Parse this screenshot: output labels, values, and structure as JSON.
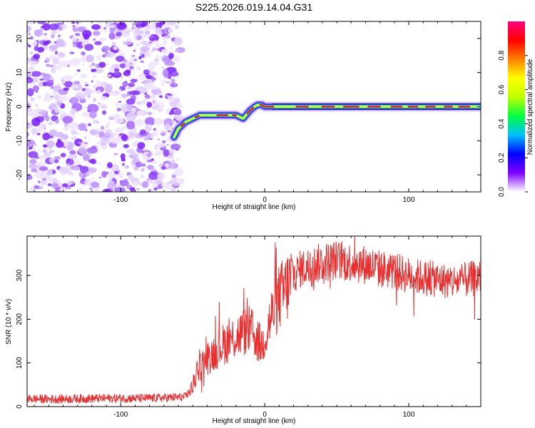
{
  "chart_data": [
    {
      "type": "heatmap",
      "title": "S225.2026.019.14.04.G31",
      "xlabel": "Height of straight line (km)",
      "ylabel": "Frequency (Hz)",
      "xlim": [
        -165,
        150
      ],
      "ylim": [
        -25,
        25
      ],
      "xticks": [
        -100,
        0,
        100
      ],
      "xtick_labels": [
        "-100",
        "0",
        "100"
      ],
      "yticks": [
        -20,
        -10,
        0,
        10,
        20
      ],
      "ytick_labels": [
        "-20",
        "-10",
        "0",
        "10",
        "20"
      ],
      "noise_region_x": [
        -165,
        -60
      ],
      "ridge": {
        "x": [
          -63,
          -60,
          -55,
          -50,
          -45,
          -40,
          -35,
          -30,
          -25,
          -20,
          -15,
          -12,
          -10,
          -7,
          -5,
          -2,
          0,
          5,
          10,
          20,
          30,
          50,
          75,
          100,
          125,
          150
        ],
        "freq": [
          -9,
          -6.5,
          -4.5,
          -3.5,
          -2.5,
          -2.5,
          -2.5,
          -2.5,
          -2.5,
          -2.5,
          -3.5,
          -2,
          -1,
          0,
          0.5,
          0.5,
          0,
          0,
          0,
          0,
          0,
          0,
          0,
          0,
          0,
          0
        ]
      },
      "colorbar": {
        "label": "Normalized spectral amplitude",
        "ticks": [
          0.0,
          0.2,
          0.4,
          0.6,
          0.8
        ],
        "tick_labels": [
          "0.0",
          "0.2",
          "0.4",
          "0.6",
          "0.8"
        ],
        "colors": [
          "#ffffff",
          "#8000ff",
          "#0000ff",
          "#00c0ff",
          "#00ff40",
          "#c0ff00",
          "#ffff00",
          "#ff8000",
          "#ff0000",
          "#ff0080"
        ]
      }
    },
    {
      "type": "line",
      "title": "",
      "xlabel": "Height of straight line (km)",
      "ylabel": "SNR (10 * v/v)",
      "xlim": [
        -165,
        150
      ],
      "ylim": [
        0,
        390
      ],
      "xticks": [
        -100,
        0,
        100
      ],
      "xtick_labels": [
        "-100",
        "0",
        "100"
      ],
      "yticks": [
        0,
        100,
        200,
        300
      ],
      "ytick_labels": [
        "0",
        "100",
        "200",
        "300"
      ],
      "color": "#e83030",
      "series": [
        {
          "name": "SNR",
          "x": [
            -165,
            -150,
            -130,
            -110,
            -90,
            -70,
            -55,
            -50,
            -47,
            -44,
            -40,
            -35,
            -30,
            -25,
            -20,
            -15,
            -10,
            -5,
            -2,
            0,
            5,
            10,
            15,
            20,
            25,
            30,
            40,
            50,
            60,
            70,
            80,
            90,
            100,
            110,
            120,
            130,
            140,
            150
          ],
          "values": [
            18,
            17,
            18,
            19,
            19,
            20,
            22,
            45,
            80,
            95,
            110,
            125,
            140,
            150,
            160,
            170,
            175,
            150,
            140,
            160,
            210,
            250,
            270,
            300,
            315,
            320,
            330,
            335,
            330,
            325,
            315,
            310,
            300,
            295,
            290,
            285,
            290,
            295
          ]
        }
      ]
    }
  ]
}
